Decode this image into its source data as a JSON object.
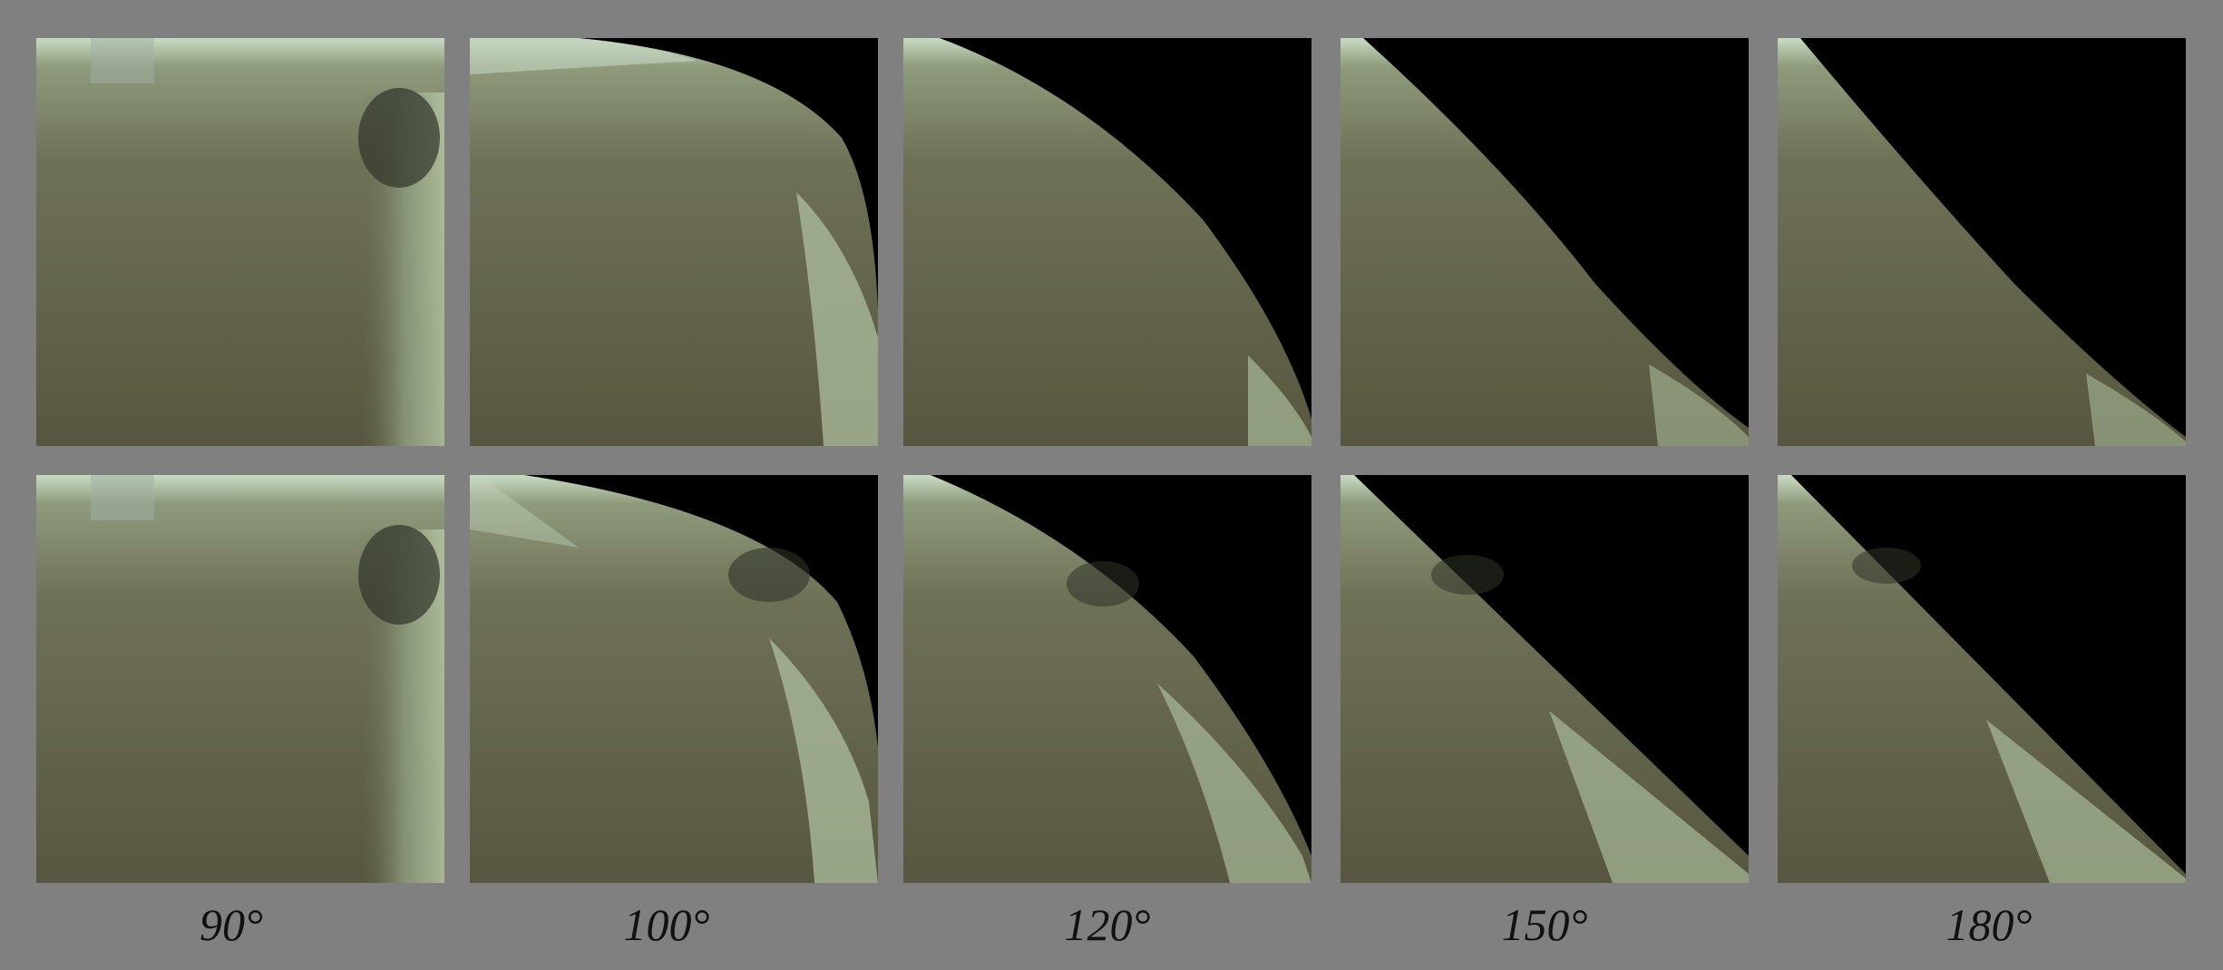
{
  "columns": [
    {
      "label": "90°"
    },
    {
      "label": "100°"
    },
    {
      "label": "120°"
    },
    {
      "label": "150°"
    },
    {
      "label": "180°"
    }
  ],
  "rows": 2,
  "colors": {
    "background": "#808080",
    "void": "#000000",
    "surface_dark": "#595740",
    "surface_mid": "#6e7056",
    "highlight": "#b9c9a9"
  }
}
